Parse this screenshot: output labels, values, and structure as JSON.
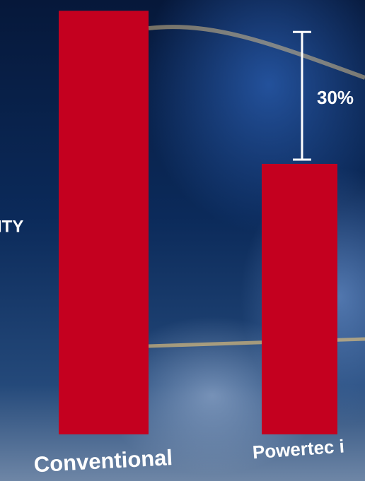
{
  "chart_data": {
    "type": "bar",
    "y_label": "ITY",
    "categories": [
      "Conventional",
      "Powertec i"
    ],
    "values": [
      100,
      70
    ],
    "color": "#c4001f",
    "ylim": [
      17,
      101
    ],
    "annotation": "30%"
  }
}
